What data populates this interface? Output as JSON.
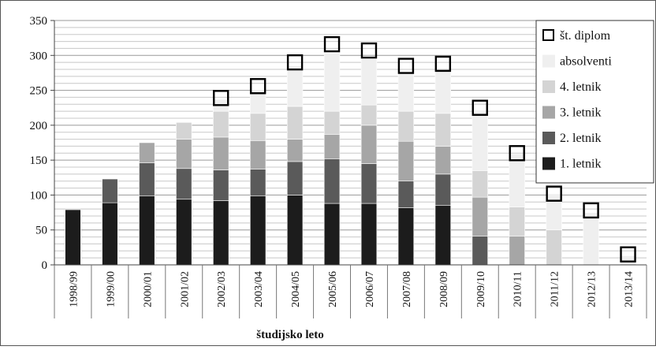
{
  "chart_data": {
    "type": "bar",
    "stacked": true,
    "xlabel": "študijsko leto",
    "ylabel": "",
    "ylim": [
      0,
      350
    ],
    "yticks": [
      0,
      50,
      100,
      150,
      200,
      250,
      300,
      350
    ],
    "grid": true,
    "legend_position": "top-right",
    "categories": [
      "1998/99",
      "1999/00",
      "2000/01",
      "2001/02",
      "2002/03",
      "2003/04",
      "2004/05",
      "2005/06",
      "2006/07",
      "2007/08",
      "2008/09",
      "2009/10",
      "2010/11",
      "2011/12",
      "2012/13",
      "2013/14"
    ],
    "series": [
      {
        "name": "1. letnik",
        "color": "#1c1c1c",
        "values": [
          79,
          89,
          99,
          94,
          92,
          99,
          100,
          88,
          88,
          82,
          85,
          0,
          0,
          0,
          0,
          0
        ]
      },
      {
        "name": "2. letnik",
        "color": "#5a5a5a",
        "values": [
          0,
          34,
          47,
          44,
          44,
          38,
          48,
          64,
          57,
          38,
          45,
          41,
          0,
          0,
          0,
          0
        ]
      },
      {
        "name": "3. letnik",
        "color": "#a6a6a6",
        "values": [
          0,
          0,
          29,
          42,
          47,
          41,
          32,
          35,
          55,
          57,
          40,
          56,
          41,
          0,
          0,
          0
        ]
      },
      {
        "name": "4. letnik",
        "color": "#d4d4d4",
        "values": [
          0,
          0,
          0,
          24,
          37,
          39,
          47,
          33,
          29,
          43,
          47,
          38,
          42,
          50,
          0,
          0
        ]
      },
      {
        "name": "absolventi",
        "color": "#efefef",
        "values": [
          0,
          0,
          0,
          0,
          17,
          34,
          58,
          83,
          66,
          56,
          62,
          85,
          76,
          50,
          75,
          13
        ]
      }
    ],
    "markers": {
      "name": "št. diplom",
      "values": [
        null,
        null,
        null,
        null,
        239,
        256,
        290,
        316,
        307,
        285,
        288,
        225,
        160,
        102,
        78,
        15
      ]
    }
  }
}
